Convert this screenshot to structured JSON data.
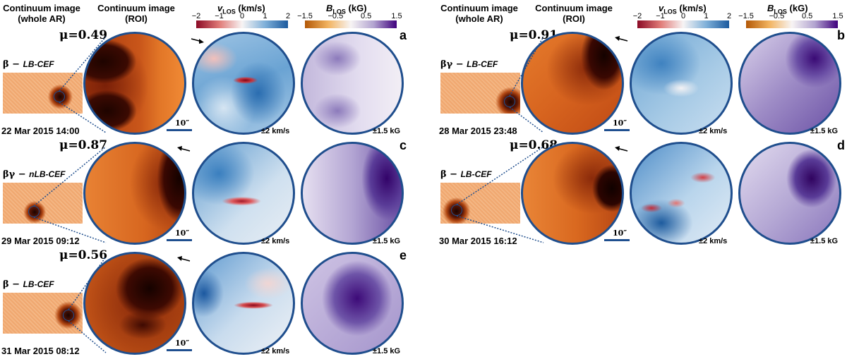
{
  "headers": {
    "whole_ar": "Continuum image\n(whole AR)",
    "roi": "Continuum image\n(ROI)",
    "vlos_title_main": "v",
    "vlos_title_sub": "LOS",
    "vlos_title_unit": " (km/s)",
    "blos_title_main": "B",
    "blos_title_sub": "LOS",
    "blos_title_unit": " (kG)"
  },
  "vlos_ticks": [
    "−2",
    "−1",
    "0",
    "1",
    "2"
  ],
  "blos_ticks": [
    "−1.5",
    "−0.5",
    "0.5",
    "1.5"
  ],
  "colors": {
    "disk_border": "#1f4e8d",
    "dotted_line": "#1f4e8d",
    "vlos_neg": "#8b0a25",
    "vlos_pos": "#1b5a9e",
    "blos_neg": "#b35806",
    "blos_pos": "#3f007d"
  },
  "panels": [
    {
      "letter": "a",
      "mu": "μ=0.49",
      "class_prefix": "β − ",
      "class_type": "LB-CEF",
      "date": "22 Mar 2015 14:00",
      "vlos_unit": "±2 km/s",
      "blos_unit": "±1.5 kG",
      "scale": "10″",
      "arrow": "right"
    },
    {
      "letter": "b",
      "mu": "μ=0.91",
      "class_prefix": "βγ − ",
      "class_type": "LB-CEF",
      "date": "28 Mar 2015 23:48",
      "vlos_unit": "±2 km/s",
      "blos_unit": "±1.5 kG",
      "scale": "10″",
      "arrow": "left"
    },
    {
      "letter": "c",
      "mu": "μ=0.87",
      "class_prefix": "βγ − ",
      "class_type": "nLB-CEF",
      "date": "29 Mar 2015 09:12",
      "vlos_unit": "±2 km/s",
      "blos_unit": "±1.5 kG",
      "scale": "10″",
      "arrow": "left"
    },
    {
      "letter": "d",
      "mu": "μ=0.68",
      "class_prefix": "β − ",
      "class_type": "LB-CEF",
      "date": "30 Mar 2015 16:12",
      "vlos_unit": "±2 km/s",
      "blos_unit": "±1.5 kG",
      "scale": "10″",
      "arrow": "left"
    },
    {
      "letter": "e",
      "mu": "μ=0.56",
      "class_prefix": "β − ",
      "class_type": "LB-CEF",
      "date": "31 Mar 2015 08:12",
      "vlos_unit": "±2 km/s",
      "blos_unit": "±1.5 kG",
      "scale": "10″",
      "arrow": "left"
    }
  ]
}
